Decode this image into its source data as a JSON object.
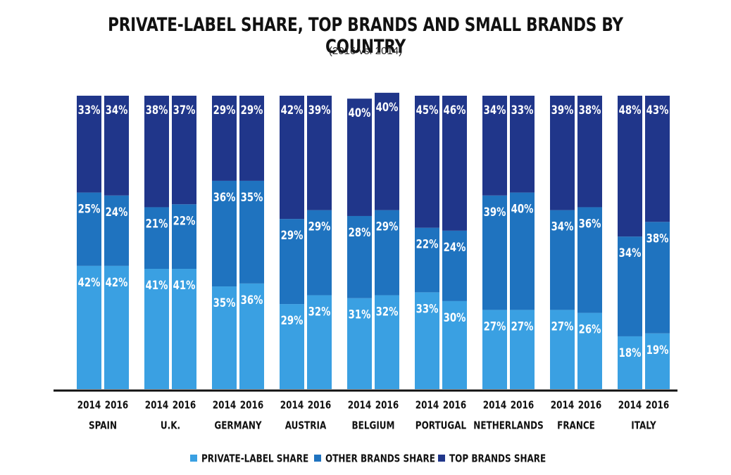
{
  "chart_data": {
    "type": "bar",
    "stacked": true,
    "title": "PRIVATE-LABEL SHARE, TOP BRANDS AND SMALL BRANDS BY COUNTRY",
    "subtitle": "(2016 vs. 2014)",
    "countries": [
      "SPAIN",
      "U.K.",
      "GERMANY",
      "AUSTRIA",
      "BELGIUM",
      "PORTUGAL",
      "NETHERLANDS",
      "FRANCE",
      "ITALY"
    ],
    "years": [
      "2014",
      "2016"
    ],
    "ylim": [
      0,
      100
    ],
    "grid": false,
    "legend_position": "bottom",
    "series": [
      {
        "name": "PRIVATE-LABEL SHARE",
        "color": "#3aa0e2",
        "values": [
          [
            42,
            42
          ],
          [
            41,
            41
          ],
          [
            35,
            36
          ],
          [
            29,
            32
          ],
          [
            31,
            32
          ],
          [
            33,
            30
          ],
          [
            27,
            27
          ],
          [
            27,
            26
          ],
          [
            18,
            19
          ]
        ],
        "labels": [
          [
            "42%",
            "42%"
          ],
          [
            "41%",
            "41%"
          ],
          [
            "35%",
            "36%"
          ],
          [
            "29%",
            "32%"
          ],
          [
            "31%",
            "32%"
          ],
          [
            "33%",
            "30%"
          ],
          [
            "27%",
            "27%"
          ],
          [
            "27%",
            "26%"
          ],
          [
            "18%",
            "19%"
          ]
        ]
      },
      {
        "name": "OTHER BRANDS SHARE",
        "color": "#1f73bf",
        "values": [
          [
            25,
            24
          ],
          [
            21,
            22
          ],
          [
            36,
            35
          ],
          [
            29,
            29
          ],
          [
            28,
            29
          ],
          [
            22,
            24
          ],
          [
            39,
            40
          ],
          [
            34,
            36
          ],
          [
            34,
            38
          ]
        ],
        "labels": [
          [
            "25%",
            "24%"
          ],
          [
            "21%",
            "22%"
          ],
          [
            "36%",
            "35%"
          ],
          [
            "29%",
            "29%"
          ],
          [
            "28%",
            "29%"
          ],
          [
            "22%",
            "24%"
          ],
          [
            "39%",
            "40%"
          ],
          [
            "34%",
            "36%"
          ],
          [
            "34%",
            "38%"
          ]
        ]
      },
      {
        "name": "TOP BRANDS SHARE",
        "color": "#20368a",
        "values": [
          [
            33,
            34
          ],
          [
            38,
            37
          ],
          [
            29,
            29
          ],
          [
            42,
            39
          ],
          [
            40,
            40
          ],
          [
            45,
            46
          ],
          [
            34,
            33
          ],
          [
            39,
            38
          ],
          [
            48,
            43
          ]
        ],
        "labels": [
          [
            "33%",
            "34%"
          ],
          [
            "38%",
            "37%"
          ],
          [
            "29%",
            "29%"
          ],
          [
            "42%",
            "39%"
          ],
          [
            "40%",
            "40%"
          ],
          [
            "45%",
            "46%"
          ],
          [
            "34%",
            "33%"
          ],
          [
            "39%",
            "38%"
          ],
          [
            "48%",
            "43%"
          ]
        ]
      }
    ]
  }
}
